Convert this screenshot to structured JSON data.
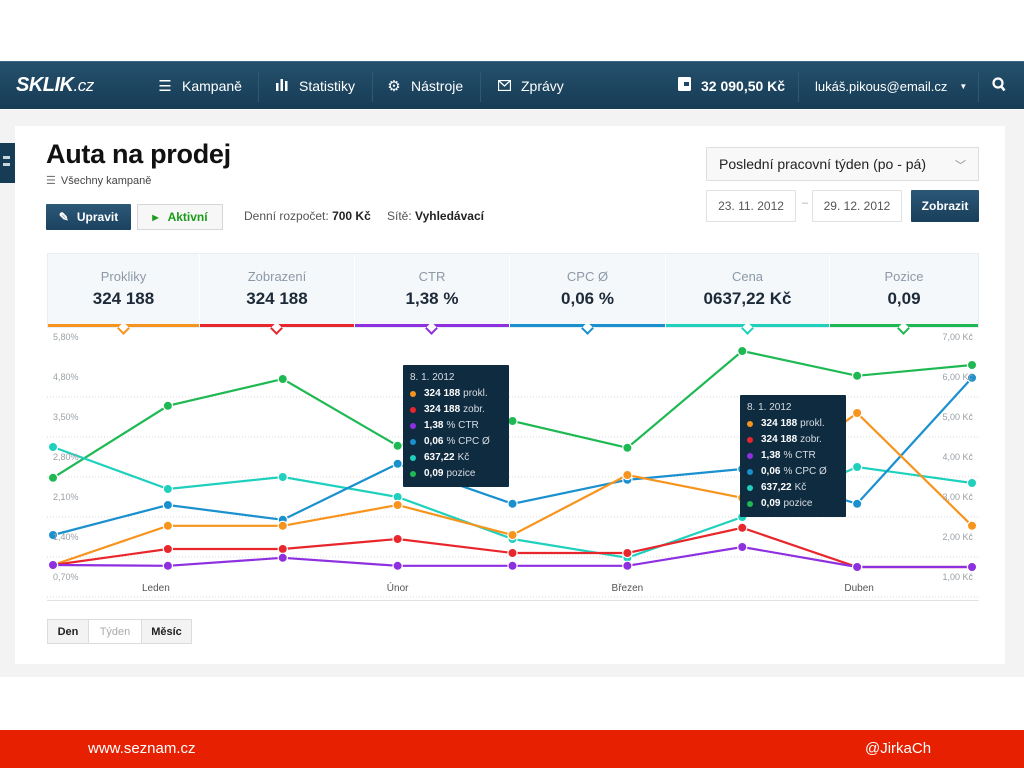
{
  "topbar": {
    "logo": "SKLIK",
    "logo_suffix": ".cz",
    "nav": [
      {
        "label": "Kampaně",
        "icon": "menu-icon"
      },
      {
        "label": "Statistiky",
        "icon": "bar-chart-icon"
      },
      {
        "label": "Nástroje",
        "icon": "gear-icon"
      },
      {
        "label": "Zprávy",
        "icon": "envelope-icon"
      }
    ],
    "balance": "32 090,50 Kč",
    "user_email": "lukáš.pikous@email.cz"
  },
  "page": {
    "title": "Auta na prodej",
    "breadcrumb": "Všechny kampaně",
    "edit_label": "Upravit",
    "status_label": "Aktivní",
    "budget_label": "Denní rozpočet:",
    "budget_value": "700 Kč",
    "networks_label": "Sítě:",
    "networks_value": "Vyhledávací"
  },
  "date_filter": {
    "range_selected": "Poslední pracovní týden (po - pá)",
    "date_from": "23. 11. 2012",
    "date_separator": "–",
    "date_to": "29. 12. 2012",
    "submit_label": "Zobrazit"
  },
  "stats": [
    {
      "label": "Prokliky",
      "value": "324 188",
      "color": "#f7941d"
    },
    {
      "label": "Zobrazení",
      "value": "324 188",
      "color": "#e8262b"
    },
    {
      "label": "CTR",
      "value": "1,38 %",
      "color": "#8e2fe0"
    },
    {
      "label": "CPC Ø",
      "value": "0,06 %",
      "color": "#1a90cf"
    },
    {
      "label": "Cena",
      "value": "0637,22 Kč",
      "color": "#1fd0bd"
    },
    {
      "label": "Pozice",
      "value": "0,09",
      "color": "#1fb954"
    }
  ],
  "tooltips": [
    {
      "date": "8. 1. 2012",
      "rows": [
        {
          "value": "324 188",
          "unit": "prokl.",
          "color": "#f7941d"
        },
        {
          "value": "324 188",
          "unit": "zobr.",
          "color": "#e8262b"
        },
        {
          "value": "1,38",
          "unit": "% CTR",
          "color": "#8e2fe0"
        },
        {
          "value": "0,06",
          "unit": "% CPC Ø",
          "color": "#1a90cf"
        },
        {
          "value": "637,22",
          "unit": "Kč",
          "color": "#1fd0bd"
        },
        {
          "value": "0,09",
          "unit": "pozice",
          "color": "#1fb954"
        }
      ]
    },
    {
      "date": "8. 1. 2012",
      "rows": [
        {
          "value": "324 188",
          "unit": "prokl.",
          "color": "#f7941d"
        },
        {
          "value": "324 188",
          "unit": "zobr.",
          "color": "#e8262b"
        },
        {
          "value": "1,38",
          "unit": "% CTR",
          "color": "#8e2fe0"
        },
        {
          "value": "0,06",
          "unit": "% CPC Ø",
          "color": "#1a90cf"
        },
        {
          "value": "637,22",
          "unit": "Kč",
          "color": "#1fd0bd"
        },
        {
          "value": "0,09",
          "unit": "pozice",
          "color": "#1fb954"
        }
      ]
    }
  ],
  "period_buttons": [
    "Den",
    "Týden",
    "Měsíc"
  ],
  "footer": {
    "left": "www.seznam.cz",
    "right": "@JirkaCh"
  },
  "chart_data": {
    "type": "line",
    "title": "",
    "xlabel": "",
    "ylabel": "",
    "x_tick_labels": [
      "Leden",
      "Únor",
      "Březen",
      "Duben"
    ],
    "x_tick_positions": [
      1,
      3,
      5,
      7
    ],
    "n_points": 9,
    "y_left_ticks": [
      "5,80%",
      "4,80%",
      "3,50%",
      "2,80%",
      "2,10%",
      "1,40%",
      "0,70%"
    ],
    "y_right_ticks": [
      "7,00 Kč",
      "6,00 Kč",
      "5,00 Kč",
      "4,00 Kč",
      "3,00 Kč",
      "2,00 Kč",
      "1,00 Kč"
    ],
    "y_right_range": [
      1.0,
      7.0
    ],
    "grid": true,
    "legend": "top (stat tabs)",
    "value_scale_note": "values expressed on right axis scale (Kč), 1.00–7.00",
    "series": [
      {
        "name": "Pozice",
        "color": "#1fb954",
        "values": [
          3.48,
          5.28,
          5.95,
          4.28,
          4.9,
          4.23,
          6.65,
          6.03,
          6.3
        ]
      },
      {
        "name": "Cena",
        "color": "#1fd0bd",
        "values": [
          4.25,
          3.2,
          3.5,
          3.0,
          1.95,
          1.48,
          2.5,
          3.75,
          3.35
        ]
      },
      {
        "name": "CPC Ø",
        "color": "#1a90cf",
        "values": [
          2.05,
          2.8,
          2.43,
          3.83,
          2.83,
          3.43,
          3.7,
          2.83,
          5.98
        ]
      },
      {
        "name": "Prokliky",
        "color": "#f7941d",
        "values": [
          1.3,
          2.28,
          2.28,
          2.8,
          2.05,
          3.55,
          2.98,
          5.1,
          2.28
        ]
      },
      {
        "name": "Zobrazení",
        "color": "#e8262b",
        "values": [
          1.3,
          1.7,
          1.7,
          1.95,
          1.6,
          1.6,
          2.23,
          1.25,
          1.25
        ]
      },
      {
        "name": "CTR",
        "color": "#8e2fe0",
        "values": [
          1.3,
          1.28,
          1.48,
          1.28,
          1.28,
          1.28,
          1.75,
          1.25,
          1.25
        ]
      }
    ]
  }
}
